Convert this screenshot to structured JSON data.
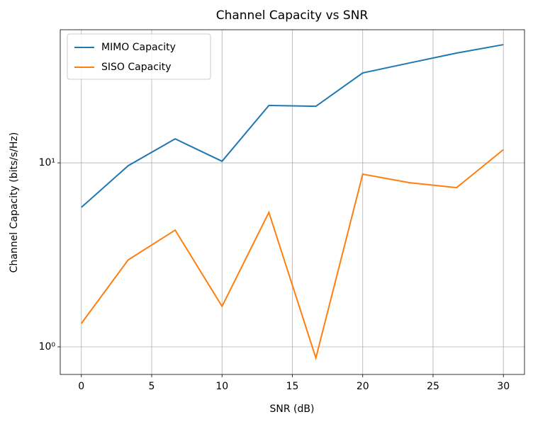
{
  "chart_data": {
    "type": "line",
    "title": "Channel Capacity vs SNR",
    "x_label": "SNR (dB)",
    "y_label": "Channel Capacity (bits/s/Hz)",
    "x": [
      0,
      3.33,
      6.67,
      10,
      13.33,
      16.67,
      20,
      23.33,
      26.67,
      30
    ],
    "series": [
      {
        "name": "MIMO Capacity",
        "color": "#1f77b4",
        "values": [
          5.73,
          9.65,
          13.5,
          10.2,
          20.5,
          20.3,
          30.8,
          34.9,
          39.5,
          43.9
        ]
      },
      {
        "name": "SISO Capacity",
        "color": "#ff7f0e",
        "values": [
          1.34,
          2.97,
          4.31,
          1.66,
          5.38,
          0.87,
          8.68,
          7.8,
          7.33,
          11.8
        ]
      }
    ],
    "xlim": [
      -1.5,
      31.5
    ],
    "xticks": [
      0,
      5,
      10,
      15,
      20,
      25,
      30
    ],
    "ylim": [
      0.708,
      52.9
    ],
    "yticks": [
      {
        "value": 1,
        "label": "10⁰"
      },
      {
        "value": 10,
        "label": "10¹"
      }
    ],
    "y_scale": "log",
    "grid": true,
    "legend": "upper-left"
  }
}
